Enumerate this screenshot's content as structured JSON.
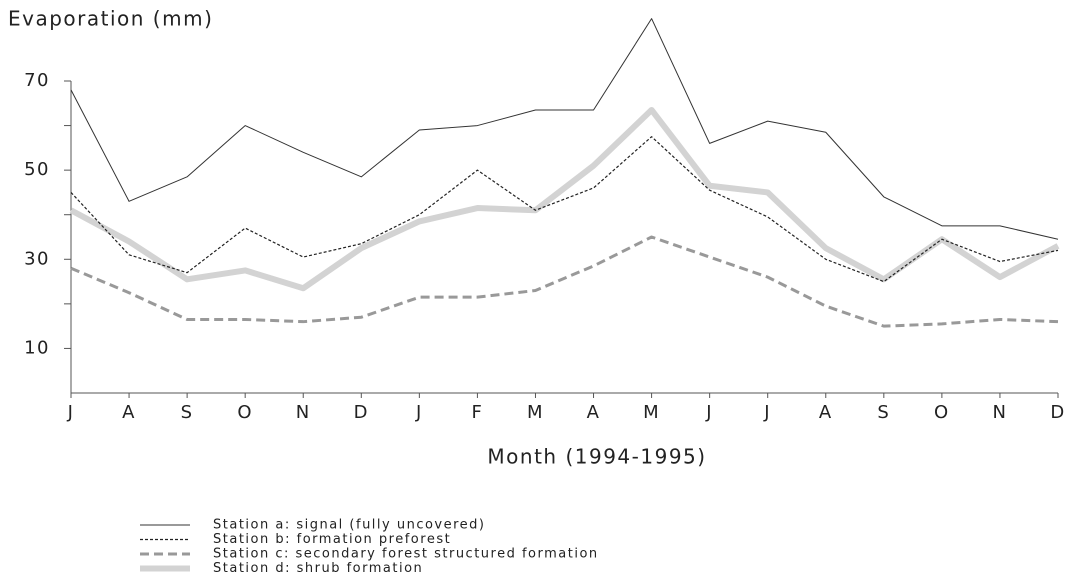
{
  "chart_data": {
    "type": "line",
    "title": "Evaporation (mm)",
    "x_label": "Month (1994-1995)",
    "categories": [
      "J",
      "A",
      "S",
      "O",
      "N",
      "D",
      "J",
      "F",
      "M",
      "A",
      "M",
      "J",
      "J",
      "A",
      "S",
      "O",
      "N",
      "D"
    ],
    "ylim": [
      0,
      70
    ],
    "yticks": [
      10,
      30,
      50,
      70
    ],
    "yminor": [
      20,
      40,
      60
    ],
    "legend": "bottom",
    "series": [
      {
        "name": "Station a: signal (fully uncovered)",
        "color": "#333333",
        "style": "thin",
        "values": [
          68,
          43,
          48.5,
          60,
          54,
          48.5,
          59,
          60,
          63.5,
          63.5,
          84,
          56,
          61,
          58.5,
          44,
          37.5,
          37.5,
          34.5
        ]
      },
      {
        "name": "Station b: formation preforest",
        "color": "#222222",
        "style": "dotted",
        "values": [
          45,
          31,
          27,
          37,
          30.5,
          33.5,
          40,
          50,
          41,
          46,
          57.5,
          45.5,
          39.5,
          30,
          25,
          34.5,
          29.5,
          32
        ]
      },
      {
        "name": "Station c: secondary forest structured formation",
        "color": "#999999",
        "style": "dashed",
        "values": [
          28,
          22.5,
          16.5,
          16.5,
          16,
          17,
          21.5,
          21.5,
          23,
          28.5,
          35,
          30.5,
          26,
          19.5,
          15,
          15.5,
          16.5,
          16
        ]
      },
      {
        "name": "Station d: shrub formation",
        "color": "#d3d3d3",
        "style": "thick",
        "values": [
          41,
          34,
          25.5,
          27.5,
          23.5,
          32.5,
          38.5,
          41.5,
          41,
          51,
          63.5,
          46.5,
          45,
          32.5,
          25.5,
          34.5,
          26,
          33
        ]
      }
    ]
  }
}
